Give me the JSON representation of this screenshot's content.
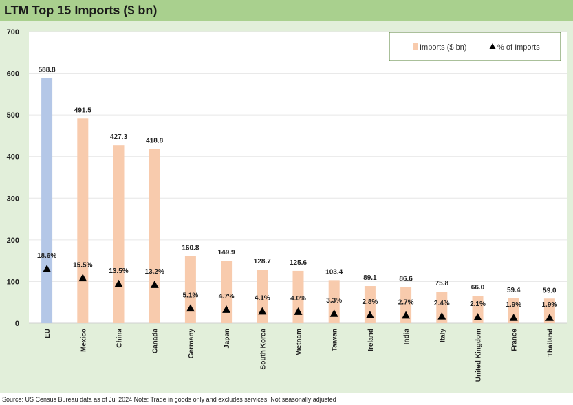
{
  "title": "LTM Top 15 Imports ($ bn)",
  "source": "Source: US Census Bureau data as of Jul 2024 Note: Trade in goods only and excludes services. Not seasonally adjusted",
  "colors": {
    "header_bg": "#a9d08e",
    "frame_bg": "#e2efda",
    "eu_bar": "#b4c7e7",
    "bar": "#f8cbad",
    "marker": "#000000"
  },
  "legend": {
    "bars_label": "Imports ($ bn)",
    "markers_label": "% of Imports"
  },
  "chart_data": {
    "type": "bar",
    "categories": [
      "EU",
      "Mexico",
      "China",
      "Canada",
      "Germany",
      "Japan",
      "South Korea",
      "Vietnam",
      "Taiwan",
      "Ireland",
      "India",
      "Italy",
      "United Kingdom",
      "France",
      "Thailand"
    ],
    "series": [
      {
        "name": "Imports ($ bn)",
        "kind": "bar",
        "values": [
          588.8,
          491.5,
          427.3,
          418.8,
          160.8,
          149.9,
          128.7,
          125.6,
          103.4,
          89.1,
          86.6,
          75.8,
          66.0,
          59.4,
          59.0
        ],
        "labels": [
          "588.8",
          "491.5",
          "427.3",
          "418.8",
          "160.8",
          "149.9",
          "128.7",
          "125.6",
          "103.4",
          "89.1",
          "86.6",
          "75.8",
          "66.0",
          "59.4",
          "59.0"
        ]
      },
      {
        "name": "% of Imports",
        "kind": "marker",
        "values": [
          18.6,
          15.5,
          13.5,
          13.2,
          5.1,
          4.7,
          4.1,
          4.0,
          3.3,
          2.8,
          2.7,
          2.4,
          2.1,
          1.9,
          1.9
        ],
        "labels": [
          "18.6%",
          "15.5%",
          "13.5%",
          "13.2%",
          "5.1%",
          "4.7%",
          "4.1%",
          "4.0%",
          "3.3%",
          "2.8%",
          "2.7%",
          "2.4%",
          "2.1%",
          "1.9%",
          "1.9%"
        ]
      }
    ],
    "yticks": [
      "0",
      "100",
      "200",
      "300",
      "400",
      "500",
      "600",
      "700"
    ],
    "ylim": [
      0,
      700
    ],
    "grid": true,
    "legend_position": "top-right"
  }
}
